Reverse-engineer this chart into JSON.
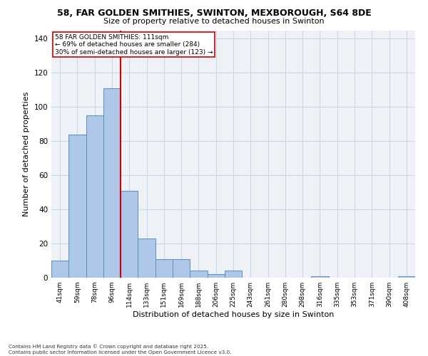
{
  "title1": "58, FAR GOLDEN SMITHIES, SWINTON, MEXBOROUGH, S64 8DE",
  "title2": "Size of property relative to detached houses in Swinton",
  "xlabel": "Distribution of detached houses by size in Swinton",
  "ylabel": "Number of detached properties",
  "categories": [
    "41sqm",
    "59sqm",
    "78sqm",
    "96sqm",
    "114sqm",
    "133sqm",
    "151sqm",
    "169sqm",
    "188sqm",
    "206sqm",
    "225sqm",
    "243sqm",
    "261sqm",
    "280sqm",
    "298sqm",
    "316sqm",
    "335sqm",
    "353sqm",
    "371sqm",
    "390sqm",
    "408sqm"
  ],
  "values": [
    10,
    84,
    95,
    111,
    51,
    23,
    11,
    11,
    4,
    2,
    4,
    0,
    0,
    0,
    0,
    1,
    0,
    0,
    0,
    0,
    1
  ],
  "bar_color": "#aec6e8",
  "bar_edge_color": "#5a8fc2",
  "grid_color": "#c8d8e8",
  "background_color": "#eef2f7",
  "vline_color": "#cc0000",
  "annotation_text": "58 FAR GOLDEN SMITHIES: 111sqm\n← 69% of detached houses are smaller (284)\n30% of semi-detached houses are larger (123) →",
  "annotation_box_color": "#ffffff",
  "annotation_box_edge": "#cc0000",
  "ylim": [
    0,
    145
  ],
  "yticks": [
    0,
    20,
    40,
    60,
    80,
    100,
    120,
    140
  ],
  "footnote": "Contains HM Land Registry data © Crown copyright and database right 2025.\nContains public sector information licensed under the Open Government Licence v3.0."
}
